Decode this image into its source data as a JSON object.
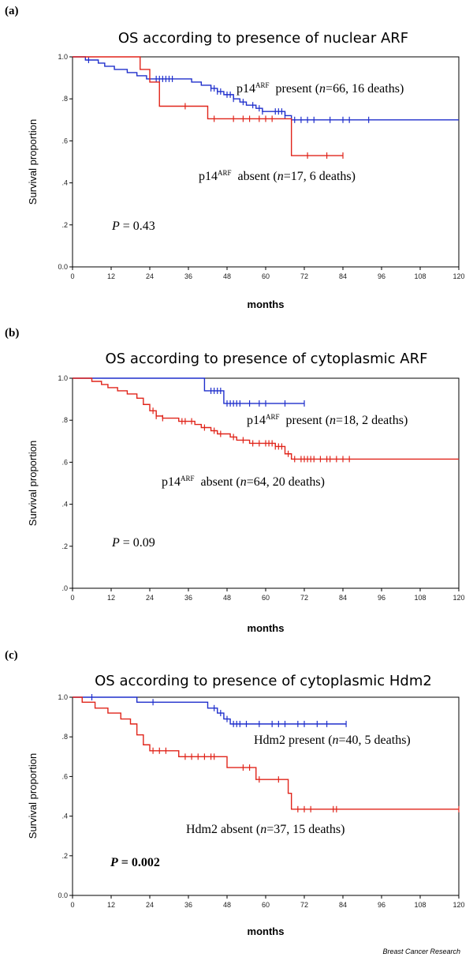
{
  "source_credit": "Breast Cancer Research",
  "colors": {
    "blue": "#1f2fcc",
    "red": "#e0241a",
    "axis": "#000000"
  },
  "chart_data": [
    {
      "type": "line",
      "panel": "(a)",
      "title": "OS according to presence of nuclear ARF",
      "xlabel": "months",
      "ylabel": "Survival proportion",
      "xlim": [
        0,
        120
      ],
      "ylim": [
        0,
        1
      ],
      "x_ticks": [
        0,
        12,
        24,
        36,
        48,
        60,
        72,
        84,
        96,
        108,
        120
      ],
      "y_ticks": [
        {
          "v": 1,
          "label": "1.0"
        },
        {
          "v": 0.8,
          "label": ".8"
        },
        {
          "v": 0.6,
          "label": ".6"
        },
        {
          "v": 0.4,
          "label": ".4"
        },
        {
          "v": 0.2,
          "label": ".2"
        },
        {
          "v": 0,
          "label": "0.0"
        }
      ],
      "pvalue": {
        "label": "P",
        "value": "= 0.43",
        "bold": false
      },
      "series": [
        {
          "color": "blue",
          "label_main": "p14",
          "label_sup": "ARF",
          "label_rest": "present (",
          "label_n": "n",
          "label_tail": "=66, 16 deaths)",
          "steps": [
            [
              0,
              1
            ],
            [
              4,
              0.985
            ],
            [
              8,
              0.97
            ],
            [
              10,
              0.955
            ],
            [
              13,
              0.94
            ],
            [
              17,
              0.925
            ],
            [
              20,
              0.91
            ],
            [
              23,
              0.895
            ],
            [
              37,
              0.88
            ],
            [
              40,
              0.865
            ],
            [
              43,
              0.85
            ],
            [
              45,
              0.835
            ],
            [
              47,
              0.82
            ],
            [
              50,
              0.8
            ],
            [
              52,
              0.785
            ],
            [
              54,
              0.77
            ],
            [
              57,
              0.755
            ],
            [
              59,
              0.74
            ],
            [
              66,
              0.72
            ],
            [
              68,
              0.7
            ],
            [
              120,
              0.7
            ]
          ],
          "censors": [
            5,
            26,
            27,
            28,
            29,
            30,
            31,
            43,
            44,
            45,
            46,
            48,
            49,
            50,
            53,
            56,
            58,
            59,
            63,
            64,
            65,
            66,
            69,
            71,
            73,
            75,
            80,
            84,
            86,
            92
          ]
        },
        {
          "color": "red",
          "label_main": "p14",
          "label_sup": "ARF",
          "label_rest": "absent (",
          "label_n": "n",
          "label_tail": "=17, 6 deaths)",
          "steps": [
            [
              0,
              1
            ],
            [
              21,
              0.94
            ],
            [
              24,
              0.88
            ],
            [
              27,
              0.765
            ],
            [
              42,
              0.705
            ],
            [
              68,
              0.53
            ],
            [
              84,
              0.53
            ]
          ],
          "censors": [
            35,
            44,
            50,
            53,
            55,
            58,
            60,
            62,
            73,
            79,
            84
          ]
        }
      ]
    },
    {
      "type": "line",
      "panel": "(b)",
      "title": "OS according to presence of cytoplasmic ARF",
      "xlabel": "months",
      "ylabel": "Survival proportion",
      "xlim": [
        0,
        120
      ],
      "ylim": [
        0,
        1
      ],
      "x_ticks": [
        0,
        12,
        24,
        36,
        48,
        60,
        72,
        84,
        96,
        108,
        120
      ],
      "y_ticks": [
        {
          "v": 1,
          "label": "1.0"
        },
        {
          "v": 0.8,
          "label": ".8"
        },
        {
          "v": 0.6,
          "label": ".6"
        },
        {
          "v": 0.4,
          "label": ".4"
        },
        {
          "v": 0.2,
          "label": ".2"
        },
        {
          "v": 0,
          "label": ".0"
        }
      ],
      "pvalue": {
        "label": "P",
        "value": "= 0.09",
        "bold": false
      },
      "series": [
        {
          "color": "blue",
          "label_main": "p14",
          "label_sup": "ARF",
          "label_rest": "present (",
          "label_n": "n",
          "label_tail": "=18, 2 deaths)",
          "steps": [
            [
              0,
              1
            ],
            [
              41,
              0.94
            ],
            [
              47,
              0.88
            ],
            [
              72,
              0.88
            ]
          ],
          "censors": [
            43,
            44,
            45,
            46,
            48,
            49,
            50,
            51,
            52,
            55,
            58,
            60,
            66,
            72
          ]
        },
        {
          "color": "red",
          "label_main": "p14",
          "label_sup": "ARF",
          "label_rest": "absent (",
          "label_n": "n",
          "label_tail": "=64, 20 deaths)",
          "steps": [
            [
              0,
              1
            ],
            [
              6,
              0.985
            ],
            [
              9,
              0.97
            ],
            [
              11,
              0.955
            ],
            [
              14,
              0.94
            ],
            [
              17,
              0.925
            ],
            [
              20,
              0.905
            ],
            [
              22,
              0.875
            ],
            [
              24,
              0.845
            ],
            [
              26,
              0.82
            ],
            [
              28,
              0.81
            ],
            [
              33,
              0.795
            ],
            [
              38,
              0.78
            ],
            [
              40,
              0.765
            ],
            [
              43,
              0.75
            ],
            [
              45,
              0.735
            ],
            [
              49,
              0.72
            ],
            [
              51,
              0.705
            ],
            [
              55,
              0.69
            ],
            [
              63,
              0.675
            ],
            [
              66,
              0.64
            ],
            [
              68,
              0.615
            ],
            [
              120,
              0.615
            ]
          ],
          "censors": [
            25,
            26,
            28,
            34,
            35,
            37,
            41,
            44,
            46,
            50,
            53,
            56,
            58,
            60,
            61,
            62,
            63,
            64,
            65,
            67,
            69,
            71,
            72,
            73,
            74,
            75,
            77,
            79,
            80,
            82,
            84,
            86
          ]
        }
      ]
    },
    {
      "type": "line",
      "panel": "(c)",
      "title": "OS according to presence of cytoplasmic Hdm2",
      "xlabel": "months",
      "ylabel": "Survival proportion",
      "xlim": [
        0,
        120
      ],
      "ylim": [
        0,
        1
      ],
      "x_ticks": [
        0,
        12,
        24,
        36,
        48,
        60,
        72,
        84,
        96,
        108,
        120
      ],
      "y_ticks": [
        {
          "v": 1,
          "label": "1.0"
        },
        {
          "v": 0.8,
          "label": ".8"
        },
        {
          "v": 0.6,
          "label": ".6"
        },
        {
          "v": 0.4,
          "label": ".4"
        },
        {
          "v": 0.2,
          "label": ".2"
        },
        {
          "v": 0,
          "label": "0.0"
        }
      ],
      "pvalue": {
        "label": "P",
        "value": "= 0.002",
        "bold": true
      },
      "series": [
        {
          "color": "blue",
          "label_main": "Hdm2",
          "label_sup": "",
          "label_rest": "present (",
          "label_n": "n",
          "label_tail": "=40, 5 deaths)",
          "steps": [
            [
              0,
              1
            ],
            [
              20,
              0.975
            ],
            [
              42,
              0.945
            ],
            [
              45,
              0.92
            ],
            [
              47,
              0.89
            ],
            [
              49,
              0.865
            ],
            [
              85,
              0.865
            ]
          ],
          "censors": [
            6,
            25,
            44,
            46,
            48,
            50,
            51,
            52,
            54,
            58,
            62,
            64,
            66,
            70,
            72,
            76,
            79,
            85
          ]
        },
        {
          "color": "red",
          "label_main": "Hdm2",
          "label_sup": "",
          "label_rest": "absent (",
          "label_n": "n",
          "label_tail": "=37, 15 deaths)",
          "steps": [
            [
              0,
              1
            ],
            [
              3,
              0.975
            ],
            [
              7,
              0.945
            ],
            [
              11,
              0.92
            ],
            [
              15,
              0.89
            ],
            [
              18,
              0.865
            ],
            [
              20,
              0.81
            ],
            [
              22,
              0.76
            ],
            [
              24,
              0.73
            ],
            [
              33,
              0.7
            ],
            [
              48,
              0.645
            ],
            [
              57,
              0.585
            ],
            [
              67,
              0.515
            ],
            [
              68,
              0.435
            ],
            [
              120,
              0.435
            ]
          ],
          "censors": [
            25,
            27,
            29,
            35,
            37,
            39,
            41,
            43,
            44,
            53,
            55,
            58,
            64,
            70,
            72,
            74,
            81,
            82,
            120
          ]
        }
      ]
    }
  ]
}
